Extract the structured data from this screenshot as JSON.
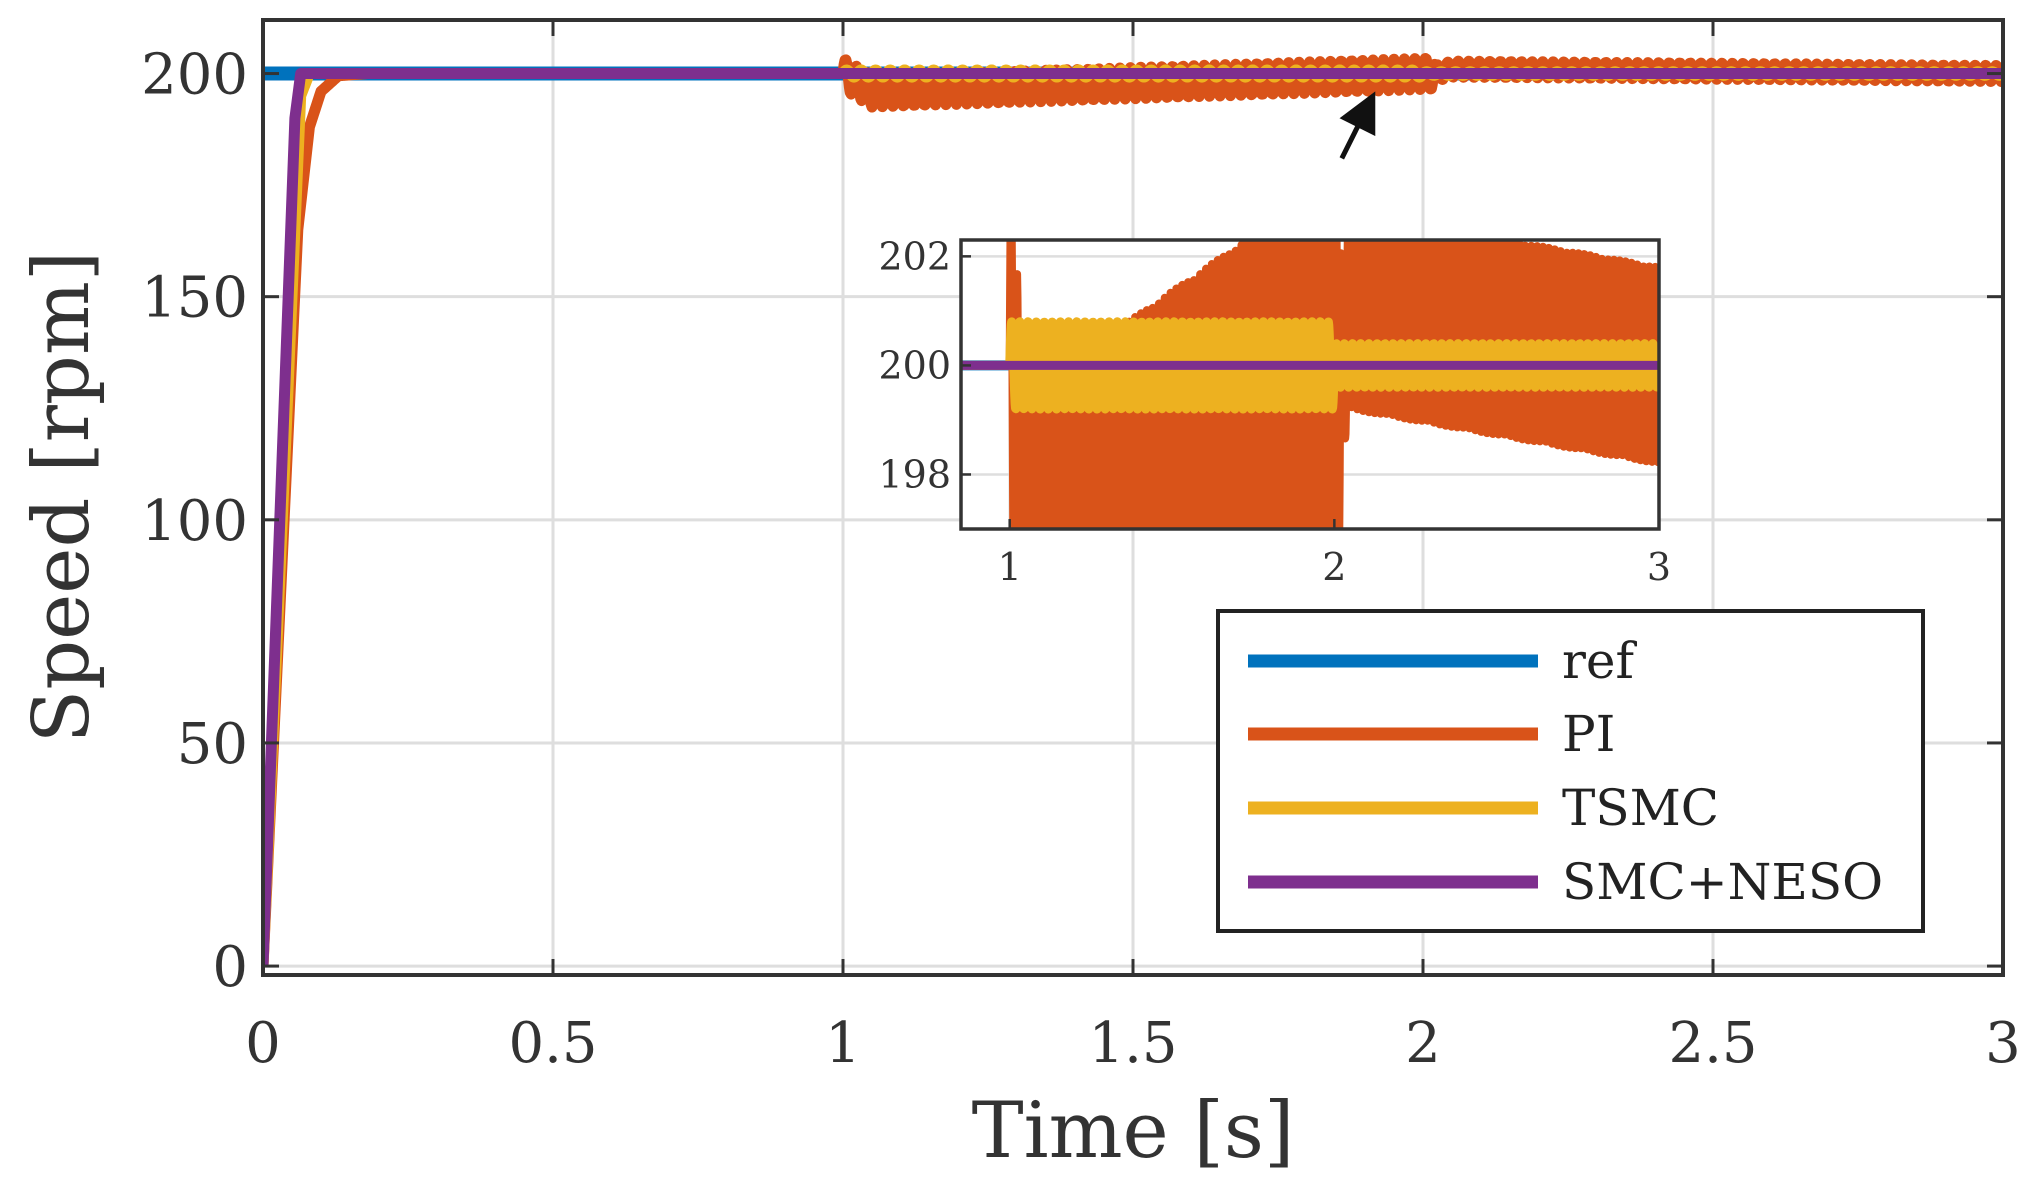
{
  "chart_data": {
    "type": "line",
    "xlabel": "Time [s]",
    "ylabel": "Speed [rpm]",
    "xlim": [
      0,
      3
    ],
    "ylim": [
      -2,
      212
    ],
    "x_ticks": [
      0,
      0.5,
      1,
      1.5,
      2,
      2.5,
      3
    ],
    "x_tick_labels": [
      "0",
      "0.5",
      "1",
      "1.5",
      "2",
      "2.5",
      "3"
    ],
    "y_ticks": [
      0,
      50,
      100,
      150,
      200
    ],
    "y_tick_labels": [
      "0",
      "50",
      "100",
      "150",
      "200"
    ],
    "grid": true,
    "legend_position": "bottom-right",
    "series": [
      {
        "name": "ref",
        "color": "#0072BD",
        "x": [
          0,
          0.06,
          3
        ],
        "y": [
          200,
          200,
          200
        ]
      },
      {
        "name": "PI",
        "color": "#D95319",
        "x": [
          0,
          0.04,
          0.06,
          0.08,
          0.1,
          0.13,
          0.18,
          1.0,
          1.05,
          2.02,
          2.05,
          3.0
        ],
        "y": [
          0,
          110,
          165,
          188,
          196,
          199.5,
          200,
          200,
          196,
          200,
          201,
          200
        ],
        "oscillation": [
          {
            "from": 1.0,
            "to": 2.02,
            "amplitude": 3.5,
            "frequency_hz": 55
          },
          {
            "from": 2.02,
            "to": 3.0,
            "amplitude": 1.8,
            "frequency_hz": 55
          }
        ]
      },
      {
        "name": "TSMC",
        "color": "#EDB120",
        "x": [
          0,
          0.065,
          0.08,
          3.0
        ],
        "y": [
          0,
          195,
          200,
          200
        ],
        "oscillation": [
          {
            "from": 1.0,
            "to": 2.0,
            "amplitude": 0.8,
            "frequency_hz": 40
          },
          {
            "from": 2.0,
            "to": 3.0,
            "amplitude": 0.4,
            "frequency_hz": 40
          }
        ]
      },
      {
        "name": "SMC+NESO",
        "color": "#7E2F8E",
        "x": [
          0,
          0.055,
          0.065,
          3.0
        ],
        "y": [
          0,
          190,
          200,
          200
        ]
      }
    ],
    "inset": {
      "xlim": [
        0.85,
        3
      ],
      "ylim": [
        197,
        202.3
      ],
      "x_ticks": [
        1,
        2,
        3
      ],
      "x_tick_labels": [
        "1",
        "2",
        "3"
      ],
      "y_ticks": [
        198,
        200,
        202
      ],
      "y_tick_labels": [
        "198",
        "200",
        "202"
      ],
      "grid": true
    },
    "annotation": {
      "type": "arrow",
      "from": [
        1.86,
        181
      ],
      "to": [
        1.91,
        194
      ]
    }
  }
}
